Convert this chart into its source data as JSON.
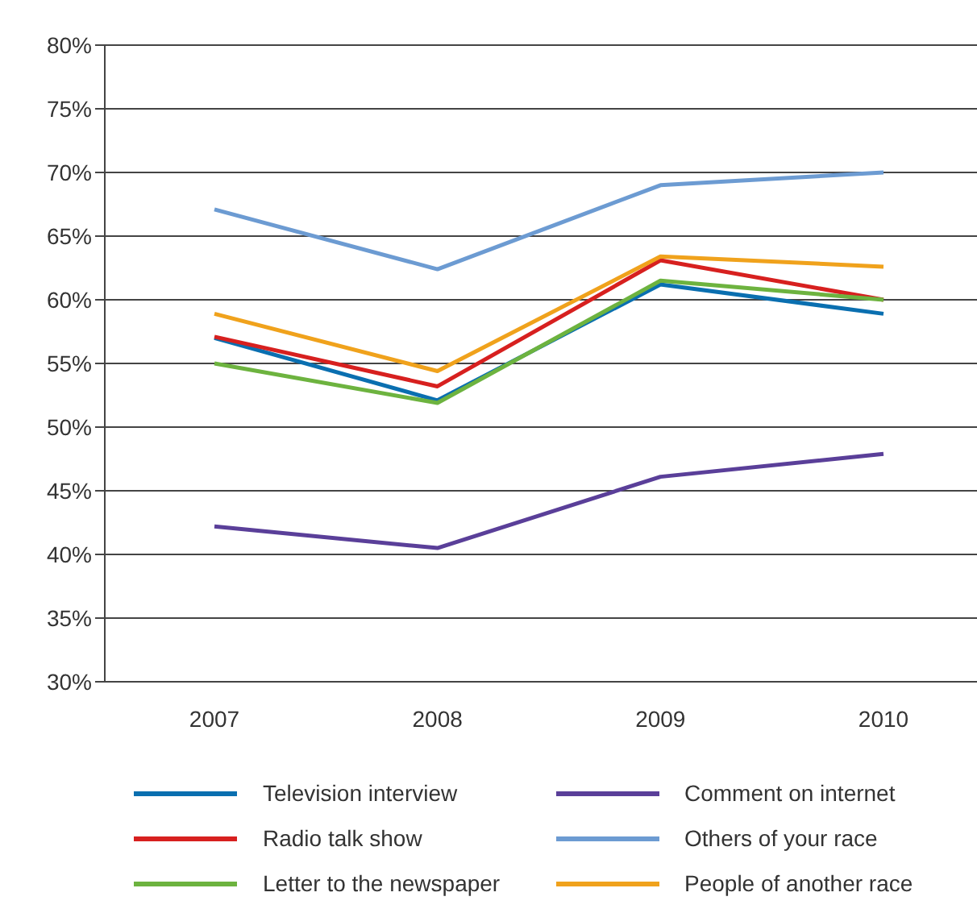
{
  "chart_data": {
    "type": "line",
    "categories": [
      "2007",
      "2008",
      "2009",
      "2010"
    ],
    "series": [
      {
        "name": "Television interview",
        "color": "#0a6fb0",
        "values": [
          57,
          52.1,
          61.2,
          58.9
        ]
      },
      {
        "name": "Radio talk show",
        "color": "#d7201f",
        "values": [
          57.1,
          53.2,
          63.1,
          60
        ]
      },
      {
        "name": "Letter to the newspaper",
        "color": "#6db33f",
        "values": [
          55,
          51.9,
          61.5,
          60
        ]
      },
      {
        "name": "Comment on internet",
        "color": "#5a3f99",
        "values": [
          42.2,
          40.5,
          46.1,
          47.9
        ]
      },
      {
        "name": "Others of your race",
        "color": "#6c9bd2",
        "values": [
          67.1,
          62.4,
          69,
          70
        ]
      },
      {
        "name": "People of another race",
        "color": "#f0a21c",
        "values": [
          58.9,
          54.4,
          63.4,
          62.6
        ]
      }
    ],
    "ylim": [
      30,
      80
    ],
    "yticks": [
      {
        "value": 30,
        "label": "30%"
      },
      {
        "value": 35,
        "label": "35%"
      },
      {
        "value": 40,
        "label": "40%"
      },
      {
        "value": 45,
        "label": "45%"
      },
      {
        "value": 50,
        "label": "50%"
      },
      {
        "value": 55,
        "label": "55%"
      },
      {
        "value": 60,
        "label": "60%"
      },
      {
        "value": 65,
        "label": "65%"
      },
      {
        "value": 70,
        "label": "70%"
      },
      {
        "value": 75,
        "label": "75%"
      },
      {
        "value": 80,
        "label": "80%"
      }
    ],
    "grid": "y",
    "legend": "bottom",
    "marker": "none",
    "line_style": "solid"
  }
}
